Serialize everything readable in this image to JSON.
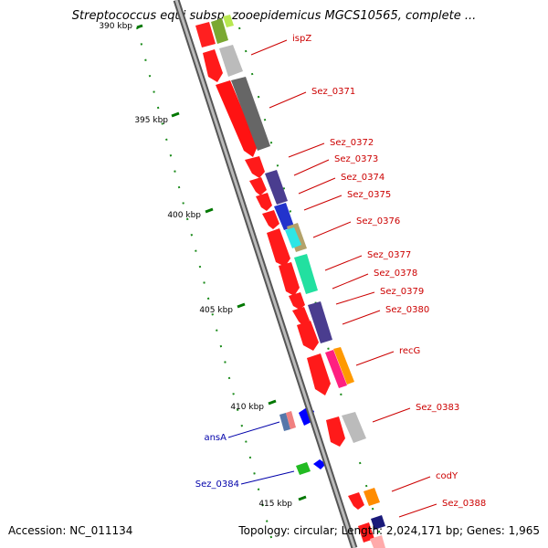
{
  "map": {
    "title": "Streptococcus equi subsp. zooepidemicus MGCS10565, complete ...",
    "footer": {
      "accession": "Accession: NC_011134",
      "summary": "Topology: circular; Length: 2,024,171 bp; Genes: 1,965"
    },
    "ticks": [
      "390 kbp",
      "395 kbp",
      "400 kbp",
      "405 kbp",
      "410 kbp",
      "415 kbp"
    ],
    "genes": [
      {
        "label": "ispZ",
        "strand": "forward"
      },
      {
        "label": "Sez_0371",
        "strand": "forward"
      },
      {
        "label": "Sez_0372",
        "strand": "forward"
      },
      {
        "label": "Sez_0373",
        "strand": "forward"
      },
      {
        "label": "Sez_0374",
        "strand": "forward"
      },
      {
        "label": "Sez_0375",
        "strand": "forward"
      },
      {
        "label": "Sez_0376",
        "strand": "forward"
      },
      {
        "label": "Sez_0377",
        "strand": "forward"
      },
      {
        "label": "Sez_0378",
        "strand": "forward"
      },
      {
        "label": "Sez_0379",
        "strand": "forward"
      },
      {
        "label": "Sez_0380",
        "strand": "forward"
      },
      {
        "label": "recG",
        "strand": "forward"
      },
      {
        "label": "Sez_0383",
        "strand": "forward"
      },
      {
        "label": "ansA",
        "strand": "reverse"
      },
      {
        "label": "Sez_0384",
        "strand": "reverse"
      },
      {
        "label": "codY",
        "strand": "forward"
      },
      {
        "label": "Sez_0388",
        "strand": "forward"
      }
    ],
    "colors": {
      "forward_label": "#cc0000",
      "reverse_label": "#0000aa",
      "cds_forward": "#ff0000",
      "cds_reverse": "#0000ff",
      "backbone": "#999999",
      "tick": "#007700"
    }
  }
}
